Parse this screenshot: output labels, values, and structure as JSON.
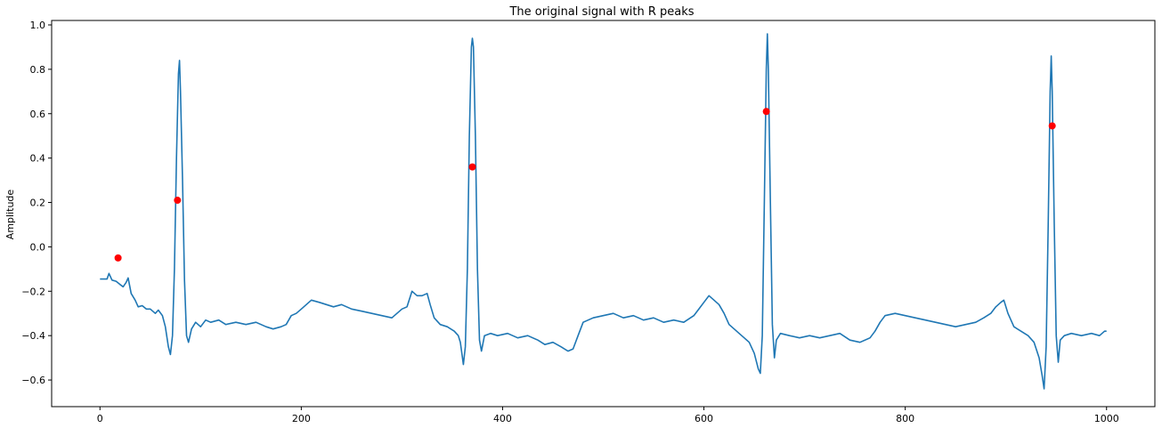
{
  "chart_data": {
    "type": "line",
    "title": "The original signal with R peaks",
    "xlabel": "",
    "ylabel": "Amplitude",
    "xlim": [
      -48,
      1048
    ],
    "ylim": [
      -0.72,
      1.02
    ],
    "x_ticks": [
      0,
      200,
      400,
      600,
      800,
      1000
    ],
    "y_ticks": [
      -0.6,
      -0.4,
      -0.2,
      0.0,
      0.2,
      0.4,
      0.6,
      0.8,
      1.0
    ],
    "x_tick_labels": [
      "0",
      "200",
      "400",
      "600",
      "800",
      "1000"
    ],
    "y_tick_labels": [
      "−0.6",
      "−0.4",
      "−0.2",
      "0.0",
      "0.2",
      "0.4",
      "0.6",
      "0.8",
      "1.0"
    ],
    "grid": false,
    "series": [
      {
        "type": "line",
        "color": "#1f77b4",
        "points": [
          [
            0,
            -0.145
          ],
          [
            7,
            -0.145
          ],
          [
            9,
            -0.12
          ],
          [
            12,
            -0.15
          ],
          [
            16,
            -0.155
          ],
          [
            20,
            -0.17
          ],
          [
            23,
            -0.18
          ],
          [
            26,
            -0.16
          ],
          [
            28,
            -0.14
          ],
          [
            31,
            -0.21
          ],
          [
            35,
            -0.24
          ],
          [
            38,
            -0.27
          ],
          [
            42,
            -0.265
          ],
          [
            46,
            -0.28
          ],
          [
            50,
            -0.28
          ],
          [
            55,
            -0.3
          ],
          [
            58,
            -0.285
          ],
          [
            62,
            -0.31
          ],
          [
            65,
            -0.36
          ],
          [
            68,
            -0.45
          ],
          [
            70,
            -0.485
          ],
          [
            72,
            -0.4
          ],
          [
            74,
            -0.1
          ],
          [
            76,
            0.4
          ],
          [
            78,
            0.78
          ],
          [
            79,
            0.84
          ],
          [
            80,
            0.7
          ],
          [
            82,
            0.3
          ],
          [
            84,
            -0.15
          ],
          [
            86,
            -0.4
          ],
          [
            88,
            -0.43
          ],
          [
            91,
            -0.37
          ],
          [
            95,
            -0.34
          ],
          [
            100,
            -0.36
          ],
          [
            105,
            -0.33
          ],
          [
            110,
            -0.34
          ],
          [
            118,
            -0.33
          ],
          [
            125,
            -0.35
          ],
          [
            135,
            -0.34
          ],
          [
            145,
            -0.35
          ],
          [
            155,
            -0.34
          ],
          [
            165,
            -0.36
          ],
          [
            172,
            -0.37
          ],
          [
            180,
            -0.36
          ],
          [
            185,
            -0.35
          ],
          [
            190,
            -0.31
          ],
          [
            195,
            -0.3
          ],
          [
            200,
            -0.28
          ],
          [
            205,
            -0.26
          ],
          [
            210,
            -0.24
          ],
          [
            218,
            -0.25
          ],
          [
            225,
            -0.26
          ],
          [
            232,
            -0.27
          ],
          [
            240,
            -0.26
          ],
          [
            250,
            -0.28
          ],
          [
            260,
            -0.29
          ],
          [
            270,
            -0.3
          ],
          [
            280,
            -0.31
          ],
          [
            290,
            -0.32
          ],
          [
            300,
            -0.28
          ],
          [
            305,
            -0.27
          ],
          [
            310,
            -0.2
          ],
          [
            315,
            -0.22
          ],
          [
            320,
            -0.22
          ],
          [
            325,
            -0.21
          ],
          [
            328,
            -0.26
          ],
          [
            332,
            -0.32
          ],
          [
            338,
            -0.35
          ],
          [
            345,
            -0.36
          ],
          [
            352,
            -0.38
          ],
          [
            356,
            -0.4
          ],
          [
            358,
            -0.43
          ],
          [
            361,
            -0.53
          ],
          [
            363,
            -0.45
          ],
          [
            365,
            -0.1
          ],
          [
            367,
            0.5
          ],
          [
            369,
            0.9
          ],
          [
            370,
            0.94
          ],
          [
            371,
            0.9
          ],
          [
            373,
            0.5
          ],
          [
            375,
            -0.1
          ],
          [
            377,
            -0.42
          ],
          [
            379,
            -0.47
          ],
          [
            382,
            -0.4
          ],
          [
            388,
            -0.39
          ],
          [
            395,
            -0.4
          ],
          [
            405,
            -0.39
          ],
          [
            415,
            -0.41
          ],
          [
            425,
            -0.4
          ],
          [
            435,
            -0.42
          ],
          [
            442,
            -0.44
          ],
          [
            450,
            -0.43
          ],
          [
            458,
            -0.45
          ],
          [
            465,
            -0.47
          ],
          [
            470,
            -0.46
          ],
          [
            475,
            -0.4
          ],
          [
            480,
            -0.34
          ],
          [
            490,
            -0.32
          ],
          [
            500,
            -0.31
          ],
          [
            510,
            -0.3
          ],
          [
            520,
            -0.32
          ],
          [
            530,
            -0.31
          ],
          [
            540,
            -0.33
          ],
          [
            550,
            -0.32
          ],
          [
            560,
            -0.34
          ],
          [
            570,
            -0.33
          ],
          [
            580,
            -0.34
          ],
          [
            590,
            -0.31
          ],
          [
            595,
            -0.28
          ],
          [
            600,
            -0.25
          ],
          [
            605,
            -0.22
          ],
          [
            610,
            -0.24
          ],
          [
            615,
            -0.26
          ],
          [
            620,
            -0.3
          ],
          [
            625,
            -0.35
          ],
          [
            630,
            -0.37
          ],
          [
            635,
            -0.39
          ],
          [
            640,
            -0.41
          ],
          [
            645,
            -0.43
          ],
          [
            650,
            -0.48
          ],
          [
            654,
            -0.55
          ],
          [
            656,
            -0.57
          ],
          [
            658,
            -0.4
          ],
          [
            660,
            0.2
          ],
          [
            662,
            0.8
          ],
          [
            663,
            0.96
          ],
          [
            664,
            0.8
          ],
          [
            666,
            0.2
          ],
          [
            668,
            -0.35
          ],
          [
            670,
            -0.5
          ],
          [
            672,
            -0.42
          ],
          [
            676,
            -0.39
          ],
          [
            685,
            -0.4
          ],
          [
            695,
            -0.41
          ],
          [
            705,
            -0.4
          ],
          [
            715,
            -0.41
          ],
          [
            725,
            -0.4
          ],
          [
            735,
            -0.39
          ],
          [
            745,
            -0.42
          ],
          [
            755,
            -0.43
          ],
          [
            765,
            -0.41
          ],
          [
            770,
            -0.38
          ],
          [
            775,
            -0.34
          ],
          [
            780,
            -0.31
          ],
          [
            790,
            -0.3
          ],
          [
            800,
            -0.31
          ],
          [
            810,
            -0.32
          ],
          [
            820,
            -0.33
          ],
          [
            830,
            -0.34
          ],
          [
            840,
            -0.35
          ],
          [
            850,
            -0.36
          ],
          [
            860,
            -0.35
          ],
          [
            870,
            -0.34
          ],
          [
            878,
            -0.32
          ],
          [
            885,
            -0.3
          ],
          [
            890,
            -0.27
          ],
          [
            895,
            -0.25
          ],
          [
            898,
            -0.24
          ],
          [
            902,
            -0.3
          ],
          [
            908,
            -0.36
          ],
          [
            915,
            -0.38
          ],
          [
            922,
            -0.4
          ],
          [
            928,
            -0.43
          ],
          [
            933,
            -0.5
          ],
          [
            936,
            -0.58
          ],
          [
            938,
            -0.64
          ],
          [
            940,
            -0.45
          ],
          [
            942,
            0.1
          ],
          [
            944,
            0.7
          ],
          [
            945,
            0.86
          ],
          [
            946,
            0.7
          ],
          [
            948,
            0.1
          ],
          [
            950,
            -0.4
          ],
          [
            952,
            -0.52
          ],
          [
            954,
            -0.42
          ],
          [
            958,
            -0.4
          ],
          [
            965,
            -0.39
          ],
          [
            975,
            -0.4
          ],
          [
            985,
            -0.39
          ],
          [
            993,
            -0.4
          ],
          [
            998,
            -0.38
          ],
          [
            1000,
            -0.38
          ]
        ]
      },
      {
        "type": "scatter",
        "color": "#ff0000",
        "points": [
          [
            18,
            -0.05
          ],
          [
            77,
            0.21
          ],
          [
            370,
            0.36
          ],
          [
            662,
            0.61
          ],
          [
            946,
            0.545
          ]
        ]
      }
    ]
  }
}
